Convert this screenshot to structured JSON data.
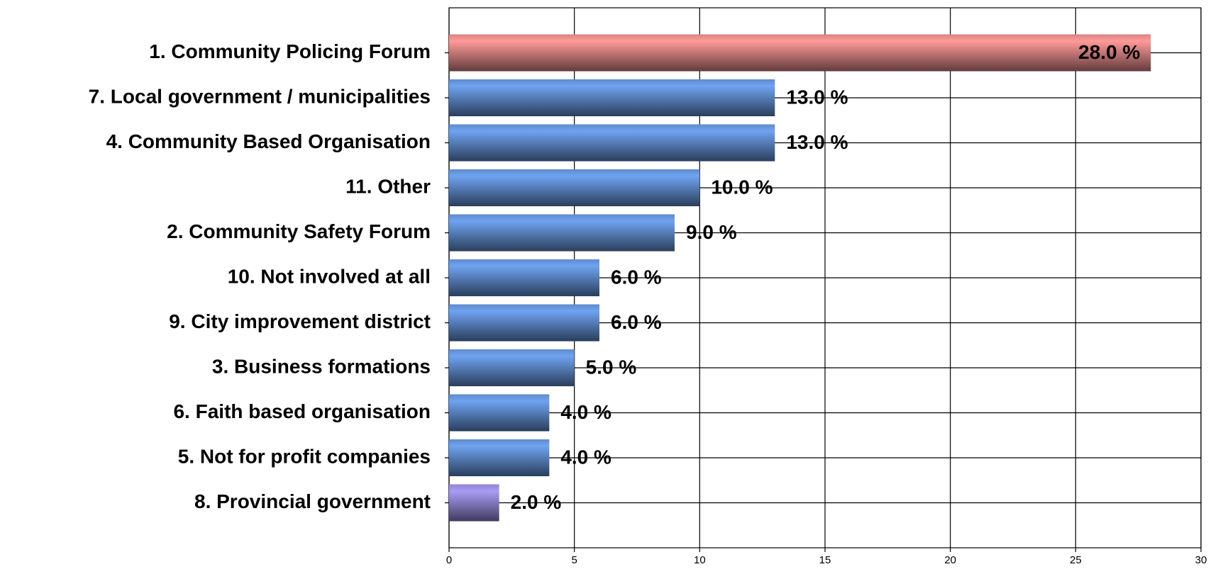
{
  "chart_data": {
    "type": "barh",
    "categories": [
      "1. Community Policing Forum",
      "7. Local government / municipalities",
      "4. Community Based Organisation",
      "11. Other",
      "2. Community Safety Forum",
      "10. Not involved at all",
      "9. City improvement district",
      "3. Business formations",
      "6. Faith based organisation",
      "5. Not for profit companies",
      "8. Provincial government"
    ],
    "values": [
      28,
      13,
      13,
      10,
      9,
      6,
      6,
      5,
      4,
      4,
      2
    ],
    "value_labels": [
      "28.0 %",
      "13.0 %",
      "13.0 %",
      "10.0 %",
      "9.0 %",
      "6.0 %",
      "6.0 %",
      "5.0 %",
      "4.0 %",
      "4.0 %",
      "2.0 %"
    ],
    "colors": [
      "#ff9a9a",
      "#6fa3f0",
      "#6fa3f0",
      "#6fa3f0",
      "#6fa3f0",
      "#6fa3f0",
      "#6fa3f0",
      "#6fa3f0",
      "#6fa3f0",
      "#6fa3f0",
      "#a99cf5"
    ],
    "xlim": [
      0,
      30
    ],
    "xticks": [
      0,
      5,
      10,
      15,
      20,
      25,
      30
    ],
    "grid": true
  }
}
